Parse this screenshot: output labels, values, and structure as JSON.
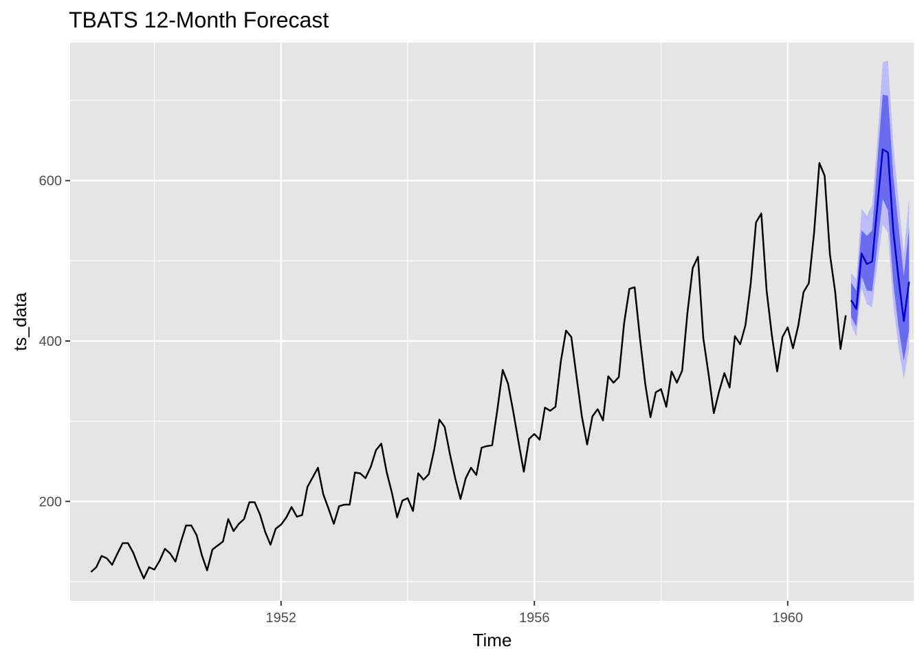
{
  "chart_data": {
    "type": "line",
    "title": "TBATS 12-Month Forecast",
    "xlabel": "Time",
    "ylabel": "ts_data",
    "xlim": [
      1948.67,
      1962.0
    ],
    "ylim": [
      76,
      772
    ],
    "x_ticks": [
      1952,
      1956,
      1960
    ],
    "x_tick_labels": [
      "1952",
      "1956",
      "1960"
    ],
    "y_ticks": [
      200,
      400,
      600
    ],
    "y_tick_labels": [
      "200",
      "400",
      "600"
    ],
    "grid": true,
    "legend": "none",
    "colors": {
      "panel": "#e5e5e5",
      "grid": "#ffffff",
      "actual": "#000000",
      "forecast": "#0000cc",
      "band80": "#6b6bf0",
      "band95": "#bcbcf7"
    },
    "actual": {
      "start": 1949.0,
      "frequency": 12,
      "values": [
        112,
        118,
        132,
        129,
        121,
        135,
        148,
        148,
        136,
        119,
        104,
        118,
        115,
        126,
        141,
        135,
        125,
        149,
        170,
        170,
        158,
        133,
        114,
        140,
        145,
        150,
        178,
        163,
        172,
        178,
        199,
        199,
        184,
        162,
        146,
        166,
        171,
        180,
        193,
        181,
        183,
        218,
        230,
        242,
        209,
        191,
        172,
        194,
        196,
        196,
        236,
        235,
        229,
        243,
        264,
        272,
        237,
        211,
        180,
        201,
        204,
        188,
        235,
        227,
        234,
        264,
        302,
        293,
        259,
        229,
        203,
        229,
        242,
        233,
        267,
        269,
        270,
        315,
        364,
        347,
        312,
        274,
        237,
        278,
        284,
        277,
        317,
        313,
        318,
        374,
        413,
        405,
        355,
        306,
        271,
        306,
        315,
        301,
        356,
        348,
        355,
        422,
        465,
        467,
        404,
        347,
        305,
        336,
        340,
        318,
        362,
        348,
        363,
        435,
        491,
        505,
        404,
        359,
        310,
        337,
        360,
        342,
        406,
        396,
        420,
        472,
        548,
        559,
        463,
        407,
        362,
        405,
        417,
        391,
        419,
        461,
        472,
        535,
        622,
        606,
        508,
        461,
        390,
        432
      ]
    },
    "forecast": {
      "start": 1961.0,
      "frequency": 12,
      "mean": [
        451,
        440,
        509,
        496,
        499,
        569,
        639,
        635,
        538,
        478,
        425,
        474
      ],
      "lo80": [
        430,
        418,
        481,
        463,
        462,
        519,
        577,
        563,
        473,
        417,
        375,
        414
      ],
      "hi80": [
        473,
        463,
        538,
        531,
        538,
        625,
        707,
        706,
        606,
        543,
        481,
        541
      ],
      "lo95": [
        421,
        405,
        466,
        446,
        442,
        496,
        545,
        535,
        445,
        391,
        353,
        390
      ],
      "hi95": [
        485,
        477,
        565,
        556,
        570,
        652,
        747,
        750,
        646,
        577,
        508,
        580
      ]
    }
  }
}
